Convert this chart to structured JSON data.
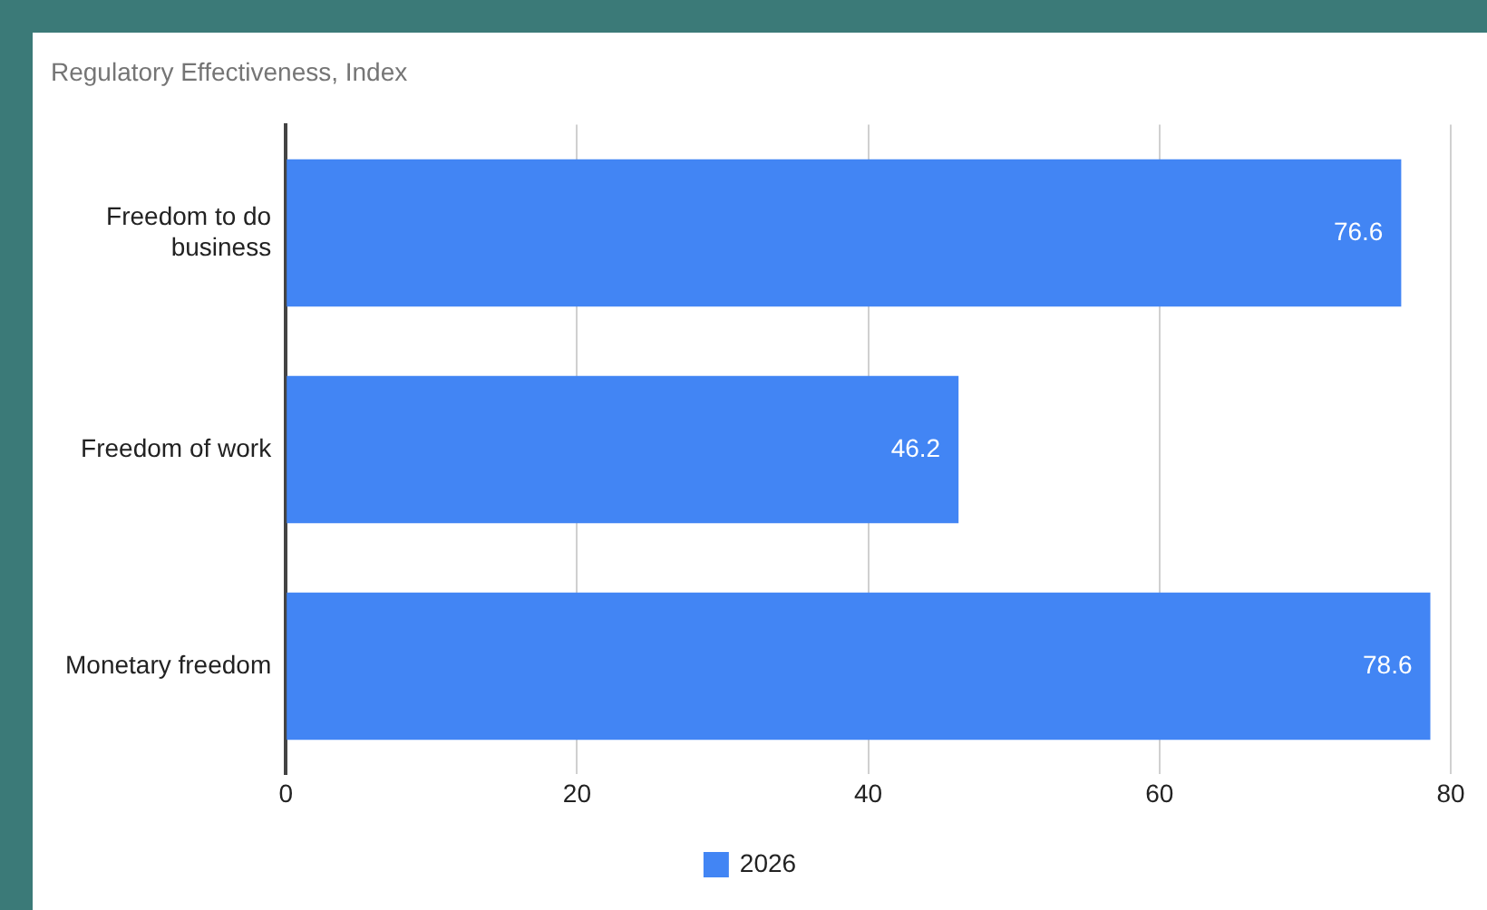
{
  "chart_data": {
    "type": "bar",
    "orientation": "horizontal",
    "title": "Regulatory Effectiveness, Index",
    "categories": [
      "Freedom to do business",
      "Freedom of work",
      "Monetary freedom"
    ],
    "series": [
      {
        "name": "2026",
        "color": "#4285f4",
        "values": [
          76.6,
          46.2,
          78.6
        ]
      }
    ],
    "xlim": [
      0,
      80
    ],
    "xticks": [
      0,
      20,
      40,
      60,
      80
    ],
    "grid": "x",
    "legend": "bottom",
    "data_labels": true
  }
}
